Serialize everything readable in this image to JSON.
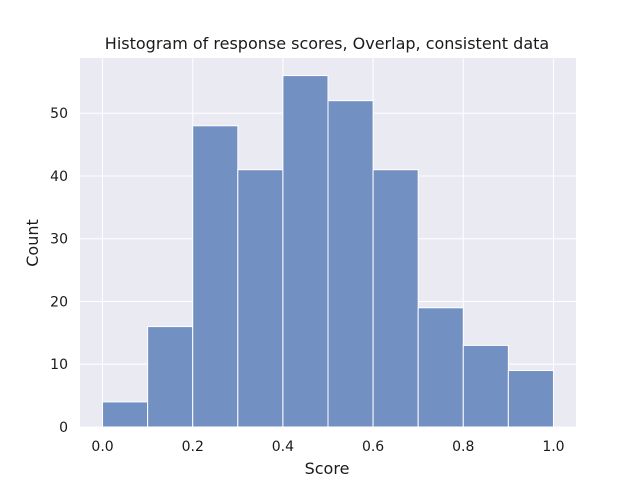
{
  "chart_data": {
    "type": "bar",
    "title": "Histogram of response scores, Overlap, consistent data",
    "xlabel": "Score",
    "ylabel": "Count",
    "bins": [
      {
        "x0": 0.0,
        "x1": 0.1,
        "count": 4
      },
      {
        "x0": 0.1,
        "x1": 0.2,
        "count": 16
      },
      {
        "x0": 0.2,
        "x1": 0.3,
        "count": 48
      },
      {
        "x0": 0.3,
        "x1": 0.4,
        "count": 41
      },
      {
        "x0": 0.4,
        "x1": 0.5,
        "count": 56
      },
      {
        "x0": 0.5,
        "x1": 0.6,
        "count": 52
      },
      {
        "x0": 0.6,
        "x1": 0.7,
        "count": 41
      },
      {
        "x0": 0.7,
        "x1": 0.8,
        "count": 19
      },
      {
        "x0": 0.8,
        "x1": 0.9,
        "count": 13
      },
      {
        "x0": 0.9,
        "x1": 1.0,
        "count": 9
      }
    ],
    "xlim": [
      -0.05,
      1.05
    ],
    "ylim": [
      0,
      58.8
    ],
    "xticks": [
      0.0,
      0.2,
      0.4,
      0.6,
      0.8,
      1.0
    ],
    "xtick_labels": [
      "0.0",
      "0.2",
      "0.4",
      "0.6",
      "0.8",
      "1.0"
    ],
    "yticks": [
      0,
      10,
      20,
      30,
      40,
      50
    ],
    "ytick_labels": [
      "0",
      "10",
      "20",
      "30",
      "40",
      "50"
    ],
    "grid": true,
    "colors": {
      "plot_background": "#eaeaf2",
      "grid": "#ffffff",
      "bar_fill": "#7390c2",
      "bar_edge": "#ffffff"
    }
  }
}
